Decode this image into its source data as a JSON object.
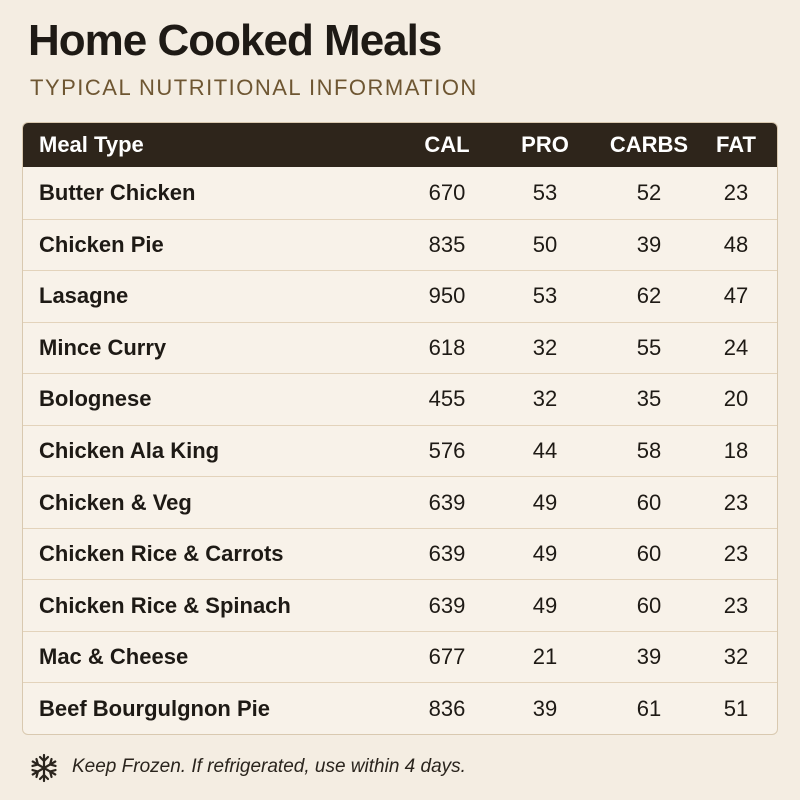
{
  "header": {
    "title": "Home Cooked Meals",
    "subtitle": "TYPICAL NUTRITIONAL INFORMATION"
  },
  "table": {
    "columns": [
      "Meal Type",
      "CAL",
      "PRO",
      "CARBS",
      "FAT"
    ],
    "rows": [
      [
        "Butter Chicken",
        670,
        53,
        52,
        23
      ],
      [
        "Chicken Pie",
        835,
        50,
        39,
        48
      ],
      [
        "Lasagne",
        950,
        53,
        62,
        47
      ],
      [
        "Mince Curry",
        618,
        32,
        55,
        24
      ],
      [
        "Bolognese",
        455,
        32,
        35,
        20
      ],
      [
        "Chicken Ala King",
        576,
        44,
        58,
        18
      ],
      [
        "Chicken & Veg",
        639,
        49,
        60,
        23
      ],
      [
        "Chicken Rice & Carrots",
        639,
        49,
        60,
        23
      ],
      [
        "Chicken Rice & Spinach",
        639,
        49,
        60,
        23
      ],
      [
        "Mac & Cheese",
        677,
        21,
        39,
        32
      ],
      [
        "Beef Bourgulgnon Pie",
        836,
        39,
        61,
        51
      ]
    ]
  },
  "footer": {
    "note": "Keep Frozen. If refrigerated, use within 4 days."
  }
}
